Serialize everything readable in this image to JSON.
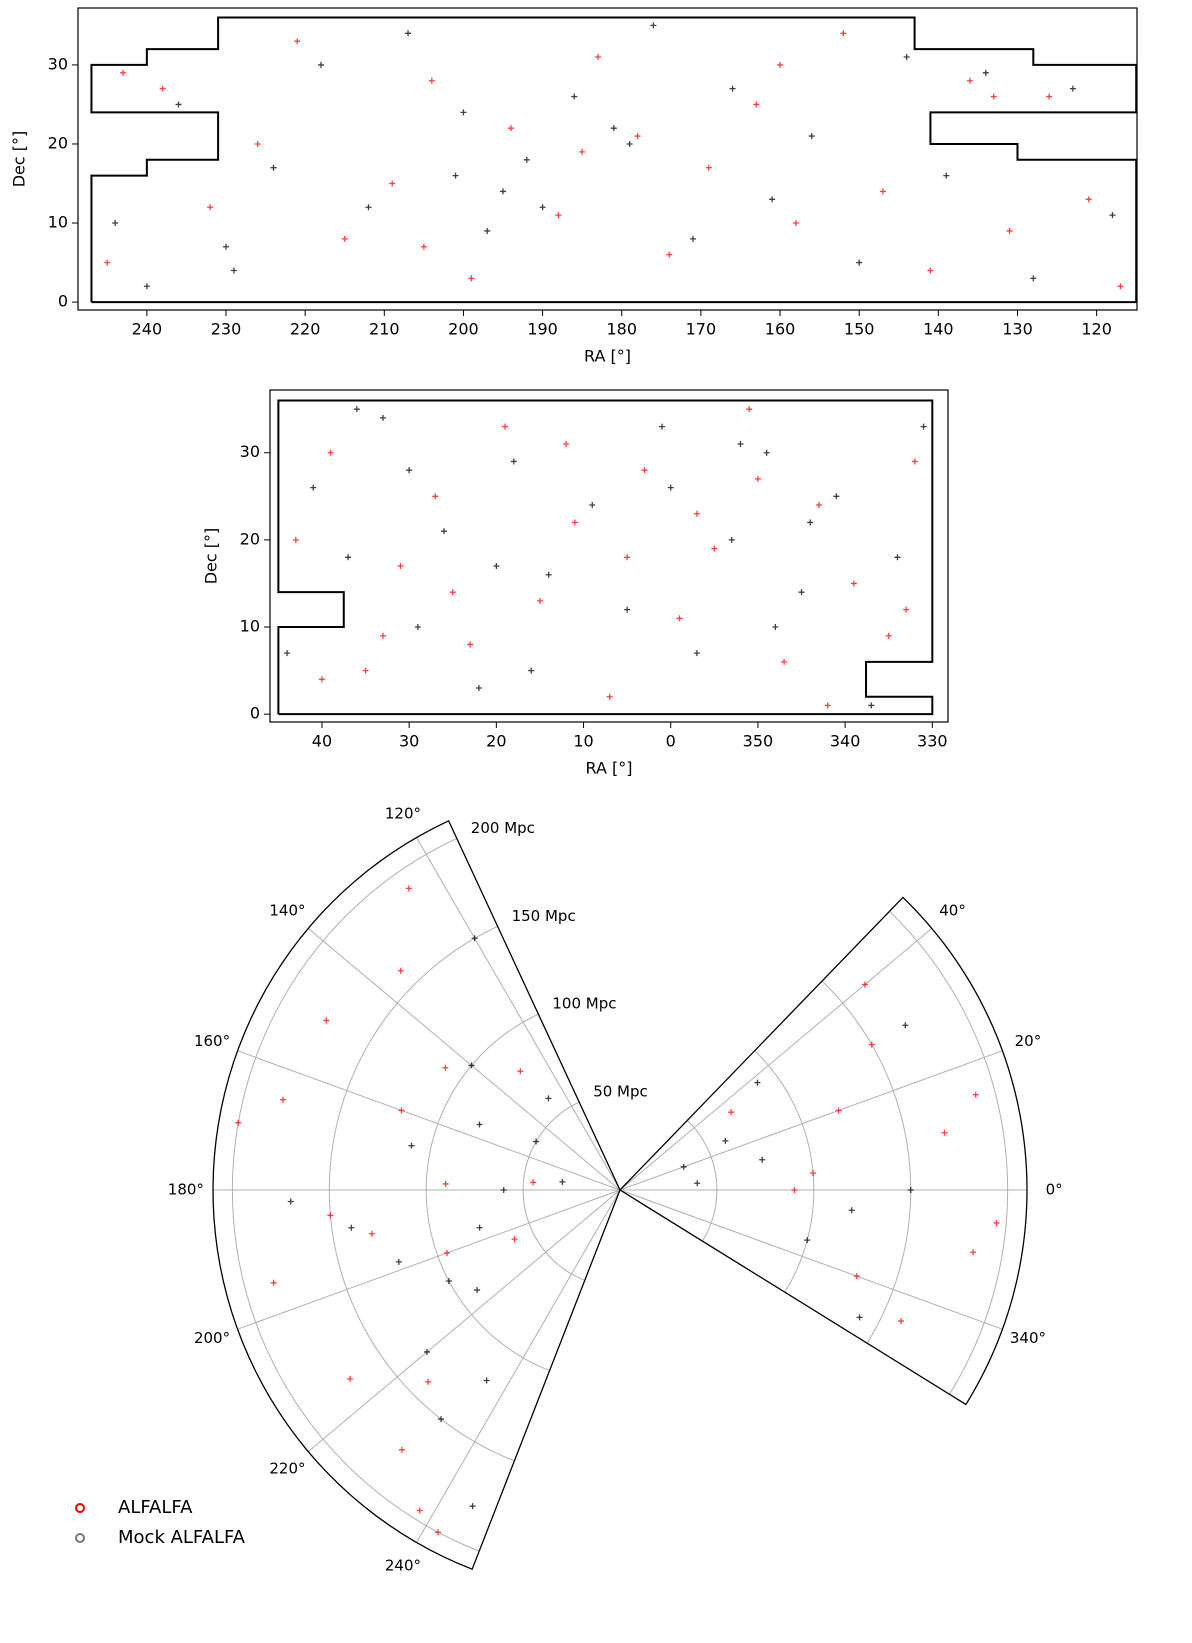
{
  "chart_data": [
    {
      "type": "scatter",
      "xlabel": "RA [°]",
      "ylabel": "Dec [°]",
      "xlim": [
        248.7,
        114.9
      ],
      "ylim": [
        -1,
        37.2
      ],
      "xticks": [
        240,
        230,
        220,
        210,
        200,
        190,
        180,
        170,
        160,
        150,
        140,
        130,
        120
      ],
      "yticks": [
        0,
        10,
        20,
        30
      ],
      "footprint": {
        "x": [
          247,
          247,
          240,
          240,
          231,
          231,
          247,
          247,
          240,
          240,
          231,
          231,
          143,
          143,
          128,
          128,
          115,
          115,
          141,
          141,
          130,
          130,
          115,
          115,
          247
        ],
        "y": [
          0,
          16,
          16,
          18,
          18,
          24,
          24,
          30,
          30,
          32,
          32,
          36,
          36,
          32,
          32,
          30,
          30,
          24,
          24,
          20,
          20,
          18,
          18,
          0,
          0
        ]
      },
      "series": [
        {
          "color": "#ff0000",
          "x": [
            245,
            238,
            232,
            226,
            221,
            215,
            209,
            204,
            199,
            194,
            188,
            183,
            178,
            174,
            169,
            163,
            158,
            152,
            147,
            141,
            136,
            131,
            126,
            121,
            117,
            243,
            205,
            185,
            160,
            133
          ],
          "y": [
            5,
            27,
            12,
            20,
            33,
            8,
            15,
            28,
            3,
            22,
            11,
            31,
            21,
            6,
            17,
            25,
            10,
            34,
            14,
            4,
            28,
            9,
            26,
            13,
            2,
            29,
            7,
            19,
            30,
            26
          ]
        },
        {
          "color": "#000000",
          "x": [
            244,
            236,
            229,
            224,
            218,
            212,
            207,
            201,
            197,
            195,
            192,
            190,
            186,
            181,
            179,
            176,
            171,
            166,
            161,
            156,
            150,
            144,
            139,
            134,
            128,
            123,
            118,
            240,
            230,
            200
          ],
          "y": [
            10,
            25,
            4,
            17,
            30,
            12,
            34,
            16,
            9,
            14,
            18,
            12,
            26,
            22,
            20,
            35,
            8,
            27,
            13,
            21,
            5,
            31,
            16,
            29,
            3,
            27,
            11,
            2,
            7,
            24
          ]
        }
      ]
    },
    {
      "type": "scatter",
      "xlabel": "RA [°]",
      "ylabel": "Dec [°]",
      "xlim": [
        45.96,
        -31.8
      ],
      "ylim": [
        -0.9,
        37.2
      ],
      "xticks": [
        40,
        30,
        20,
        10,
        0,
        {
          "value": -10,
          "label": "350"
        },
        {
          "value": -20,
          "label": "340"
        },
        {
          "value": -30,
          "label": "330"
        }
      ],
      "yticks": [
        0,
        10,
        20,
        30
      ],
      "footprint": {
        "x": [
          45,
          45,
          37.5,
          37.5,
          45,
          45,
          -30,
          -30,
          -22.4,
          -22.4,
          -30,
          -30,
          45
        ],
        "y": [
          0,
          10,
          10,
          14,
          14,
          36,
          36,
          6,
          6,
          2,
          2,
          0,
          0
        ]
      },
      "series": [
        {
          "color": "#ff0000",
          "x": [
            43,
            39,
            35,
            31,
            27,
            23,
            19,
            15,
            11,
            7,
            3,
            -1,
            -5,
            -9,
            -13,
            -17,
            -21,
            -25,
            -28,
            40,
            25,
            12,
            -3,
            -18,
            33,
            5,
            -10,
            -27
          ],
          "y": [
            20,
            30,
            5,
            17,
            25,
            8,
            33,
            13,
            22,
            2,
            28,
            11,
            19,
            35,
            6,
            24,
            15,
            9,
            29,
            4,
            14,
            31,
            23,
            1,
            9,
            18,
            27,
            12
          ]
        },
        {
          "color": "#000000",
          "x": [
            44,
            41,
            37,
            33,
            29,
            26,
            22,
            18,
            14,
            9,
            5,
            1,
            -3,
            -7,
            -11,
            -15,
            -19,
            -23,
            -26,
            -29,
            36,
            20,
            0,
            -12,
            16,
            -8,
            30,
            -16
          ],
          "y": [
            7,
            26,
            18,
            34,
            10,
            21,
            3,
            29,
            16,
            24,
            12,
            33,
            7,
            20,
            30,
            14,
            25,
            1,
            18,
            33,
            35,
            17,
            26,
            10,
            5,
            31,
            28,
            22
          ]
        }
      ]
    },
    {
      "type": "polar",
      "legend": "lower left",
      "wedges": [
        [
          248.7,
          114.9
        ],
        [
          45.96,
          -31.8
        ]
      ],
      "rlim": [
        0,
        210
      ],
      "rticks": [
        {
          "value": 50,
          "label": "50 Mpc"
        },
        {
          "value": 100,
          "label": "100 Mpc"
        },
        {
          "value": 150,
          "label": "150 Mpc"
        },
        {
          "value": 200,
          "label": "200 Mpc"
        }
      ],
      "thetaticks": [
        {
          "value": 120,
          "label": "120°"
        },
        {
          "value": 140,
          "label": "140°"
        },
        {
          "value": 160,
          "label": "160°"
        },
        {
          "value": 180,
          "label": "180°"
        },
        {
          "value": 200,
          "label": "200°"
        },
        {
          "value": 220,
          "label": "220°"
        },
        {
          "value": 240,
          "label": "240°"
        },
        {
          "value": -20,
          "label": "340°"
        },
        {
          "value": 0,
          "label": "0°"
        },
        {
          "value": 20,
          "label": "20°"
        },
        {
          "value": 40,
          "label": "40°"
        }
      ],
      "series": [
        {
          "name": "ALFALFA",
          "color": "#ff0000",
          "theta": [
            125,
            135,
            150,
            160,
            170,
            178,
            185,
            195,
            205,
            215,
            225,
            238,
            130,
            145,
            165,
            190,
            200,
            230,
            242,
            175,
            10,
            30,
            -10,
            -25,
            0,
            20,
            40,
            -5,
            35,
            -20,
            15,
            5
          ],
          "r": [
            190,
            160,
            175,
            120,
            200,
            90,
            150,
            185,
            60,
            170,
            140,
            195,
            80,
            110,
            180,
            130,
            95,
            175,
            200,
            45,
            170,
            150,
            185,
            160,
            90,
            120,
            165,
            195,
            70,
            130,
            190,
            100
          ]
        },
        {
          "name": "Mock ALFALFA",
          "color": "#000000",
          "theta": [
            120,
            140,
            155,
            168,
            180,
            188,
            198,
            208,
            220,
            232,
            245,
            128,
            150,
            172,
            195,
            215,
            235,
            182,
            25,
            38,
            -15,
            -28,
            5,
            12,
            -5,
            30,
            0,
            20
          ],
          "r": [
            150,
            100,
            80,
            110,
            60,
            140,
            120,
            100,
            130,
            150,
            180,
            60,
            50,
            30,
            75,
            90,
            120,
            170,
            60,
            90,
            100,
            140,
            40,
            75,
            120,
            170,
            150,
            35
          ]
        }
      ]
    }
  ]
}
